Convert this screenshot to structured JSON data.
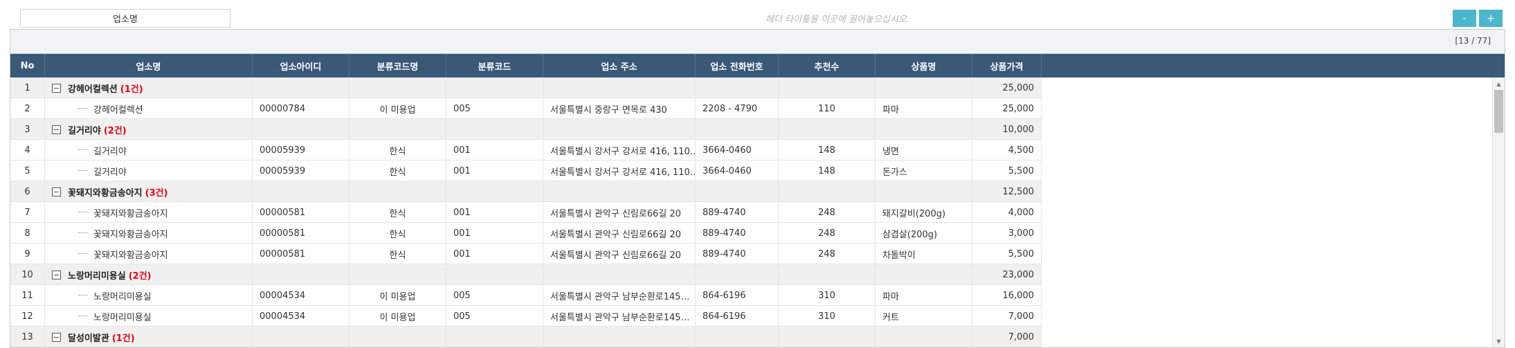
{
  "toolbar": {
    "groupby_label": "업소명",
    "drop_hint": "헤더 타이틀을 이곳에 끌어놓으십시오.",
    "zoom_out": "-",
    "zoom_in": "+"
  },
  "grid": {
    "page_counter": "[13 / 77]",
    "columns": [
      {
        "key": "no",
        "label": "No"
      },
      {
        "key": "shop_name",
        "label": "업소명"
      },
      {
        "key": "shop_id",
        "label": "업소아이디"
      },
      {
        "key": "category_name",
        "label": "분류코드명"
      },
      {
        "key": "category_code",
        "label": "분류코드"
      },
      {
        "key": "address",
        "label": "업소 주소"
      },
      {
        "key": "phone",
        "label": "업소 전화번호"
      },
      {
        "key": "recommend",
        "label": "추천수"
      },
      {
        "key": "product",
        "label": "상품명"
      },
      {
        "key": "price",
        "label": "상품가격"
      }
    ],
    "rows": [
      {
        "type": "group",
        "no": "1",
        "name": "강헤어컬렉션",
        "count": "(1건)",
        "price": "25,000"
      },
      {
        "type": "detail",
        "no": "2",
        "shop_name": "강헤어컬렉션",
        "shop_id": "00000784",
        "category_name": "이 미용업",
        "category_code": "005",
        "address": "서울특별시 중랑구 면목로 430",
        "phone": "2208 - 4790",
        "recommend": "110",
        "product": "파마",
        "price": "25,000"
      },
      {
        "type": "group",
        "no": "3",
        "name": "길거리야",
        "count": "(2건)",
        "price": "10,000"
      },
      {
        "type": "detail",
        "no": "4",
        "shop_name": "길거리야",
        "shop_id": "00005939",
        "category_name": "한식",
        "category_code": "001",
        "address": "서울특별시 강서구 강서로 416, 110…",
        "phone": "3664-0460",
        "recommend": "148",
        "product": "냉면",
        "price": "4,500"
      },
      {
        "type": "detail",
        "no": "5",
        "shop_name": "길거리야",
        "shop_id": "00005939",
        "category_name": "한식",
        "category_code": "001",
        "address": "서울특별시 강서구 강서로 416, 110…",
        "phone": "3664-0460",
        "recommend": "148",
        "product": "돈가스",
        "price": "5,500"
      },
      {
        "type": "group",
        "no": "6",
        "name": "꽃돼지와황금송아지",
        "count": "(3건)",
        "price": "12,500"
      },
      {
        "type": "detail",
        "no": "7",
        "shop_name": "꽃돼지와황금송아지",
        "shop_id": "00000581",
        "category_name": "한식",
        "category_code": "001",
        "address": "서울특별시 관악구 신림로66길 20",
        "phone": "889-4740",
        "recommend": "248",
        "product": "돼지갈비(200g)",
        "price": "4,000"
      },
      {
        "type": "detail",
        "no": "8",
        "shop_name": "꽃돼지와황금송아지",
        "shop_id": "00000581",
        "category_name": "한식",
        "category_code": "001",
        "address": "서울특별시 관악구 신림로66길 20",
        "phone": "889-4740",
        "recommend": "248",
        "product": "삼겹살(200g)",
        "price": "3,000"
      },
      {
        "type": "detail",
        "no": "9",
        "shop_name": "꽃돼지와황금송아지",
        "shop_id": "00000581",
        "category_name": "한식",
        "category_code": "001",
        "address": "서울특별시 관악구 신림로66길 20",
        "phone": "889-4740",
        "recommend": "248",
        "product": "차돌박이",
        "price": "5,500"
      },
      {
        "type": "group",
        "no": "10",
        "name": "노랑머리미용실",
        "count": "(2건)",
        "price": "23,000"
      },
      {
        "type": "detail",
        "no": "11",
        "shop_name": "노랑머리미용실",
        "shop_id": "00004534",
        "category_name": "이 미용업",
        "category_code": "005",
        "address": "서울특별시 관악구 남부순환로145…",
        "phone": "864-6196",
        "recommend": "310",
        "product": "파마",
        "price": "16,000"
      },
      {
        "type": "detail",
        "no": "12",
        "shop_name": "노랑머리미용실",
        "shop_id": "00004534",
        "category_name": "이 미용업",
        "category_code": "005",
        "address": "서울특별시 관악구 남부순환로145…",
        "phone": "864-6196",
        "recommend": "310",
        "product": "커트",
        "price": "7,000"
      },
      {
        "type": "group",
        "no": "13",
        "name": "달성이발관",
        "count": "(1건)",
        "price": "7,000"
      }
    ]
  },
  "colors": {
    "header_bg": "#3a5878",
    "group_count": "#e60012",
    "zoom_button": "#4cb6cc"
  },
  "icons": {
    "collapse": "minus-square-icon",
    "scroll_up": "scroll-up-arrow-icon",
    "scroll_down": "scroll-down-arrow-icon"
  }
}
